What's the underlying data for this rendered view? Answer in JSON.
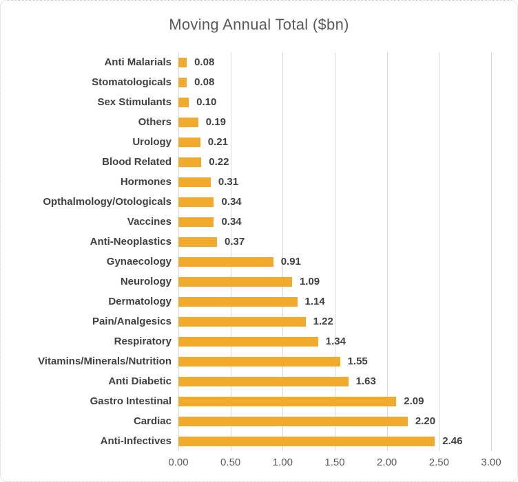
{
  "colors": {
    "bar": "#F2AA2D",
    "title_text": "#595959",
    "category_text": "#404040",
    "value_text": "#404040",
    "axis_text": "#595959",
    "gridline": "#D9D9D9",
    "border": "#C9C9C9"
  },
  "chart_data": {
    "type": "bar",
    "orientation": "horizontal",
    "title": "Moving Annual Total ($bn)",
    "categories": [
      "Anti Malarials",
      "Stomatologicals",
      "Sex Stimulants",
      "Others",
      "Urology",
      "Blood Related",
      "Hormones",
      "Opthalmology/Otologicals",
      "Vaccines",
      "Anti-Neoplastics",
      "Gynaecology",
      "Neurology",
      "Dermatology",
      "Pain/Analgesics",
      "Respiratory",
      "Vitamins/Minerals/Nutrition",
      "Anti Diabetic",
      "Gastro Intestinal",
      "Cardiac",
      "Anti-Infectives"
    ],
    "values": [
      0.08,
      0.08,
      0.1,
      0.19,
      0.21,
      0.22,
      0.31,
      0.34,
      0.34,
      0.37,
      0.91,
      1.09,
      1.14,
      1.22,
      1.34,
      1.55,
      1.63,
      2.09,
      2.2,
      2.46
    ],
    "value_labels": [
      "0.08",
      "0.08",
      "0.10",
      "0.19",
      "0.21",
      "0.22",
      "0.31",
      "0.34",
      "0.34",
      "0.37",
      "0.91",
      "1.09",
      "1.14",
      "1.22",
      "1.34",
      "1.55",
      "1.63",
      "2.09",
      "2.20",
      "2.46"
    ],
    "x_ticks": [
      "0.00",
      "0.50",
      "1.00",
      "1.50",
      "2.00",
      "2.50",
      "3.00"
    ],
    "xlim": [
      0,
      3.0
    ],
    "xlabel": "",
    "ylabel": "",
    "grid": true,
    "legend": false,
    "data_labels": true
  }
}
